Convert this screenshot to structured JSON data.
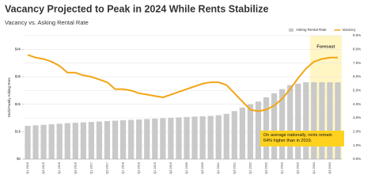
{
  "chart_data": {
    "type": "bar-line",
    "title": "Vacancy Projected to Peak in 2024 While Rents Stabilize",
    "subtitle": "Vacancy vs. Asking Rental Rate",
    "y_label": "Multi-Family Asking Rent",
    "categories": [
      "Q1 2015",
      null,
      "Q3 2015",
      null,
      "Q1 2016",
      null,
      "Q3 2016",
      null,
      "Q1 2017",
      null,
      "Q3 2017",
      null,
      "Q1 2018",
      null,
      "Q3 2018",
      null,
      "Q1 2019",
      null,
      "Q3 2019",
      null,
      "Q1 2020",
      null,
      "Q3 2020",
      null,
      "Q1 2021",
      null,
      "Q3 2021",
      null,
      "Q1 2022",
      null,
      "Q3 2022",
      null,
      "Q1 2023",
      null,
      "Q3 2023",
      null,
      "Q1 2024",
      null,
      "Q3 2024",
      null
    ],
    "series": [
      {
        "name": "Asking Rental Rate",
        "color": "#c9c9c9",
        "type": "bar",
        "values": [
          1212,
          1230,
          1250,
          1270,
          1290,
          1310,
          1325,
          1340,
          1355,
          1370,
          1385,
          1400,
          1415,
          1430,
          1445,
          1460,
          1475,
          1490,
          1505,
          1520,
          1535,
          1550,
          1560,
          1575,
          1600,
          1650,
          1750,
          1880,
          2000,
          2100,
          2250,
          2400,
          2550,
          2700,
          2750,
          2800,
          2800,
          2800,
          2800,
          2800
        ]
      },
      {
        "name": "Vacancy",
        "color": "#f2a516",
        "type": "line",
        "axis": "y2",
        "values": [
          7.6,
          7.4,
          7.3,
          7.1,
          6.8,
          6.3,
          6.3,
          6.1,
          6.0,
          5.8,
          5.6,
          5.1,
          5.1,
          5.0,
          4.8,
          4.7,
          4.6,
          4.5,
          4.7,
          4.9,
          5.1,
          5.3,
          5.5,
          5.6,
          5.6,
          5.4,
          4.8,
          4.2,
          3.6,
          3.5,
          3.6,
          3.9,
          4.4,
          5.1,
          5.9,
          6.6,
          7.1,
          7.3,
          7.4,
          7.4
        ]
      }
    ],
    "ylim": [
      0,
      4500
    ],
    "yticks": [
      {
        "value": 0,
        "label": "$0"
      },
      {
        "value": 1000,
        "label": "$1k"
      },
      {
        "value": 2000,
        "label": "$2k"
      },
      {
        "value": 3000,
        "label": "$3k"
      },
      {
        "value": 4000,
        "label": "$4k"
      }
    ],
    "y2lim": [
      0,
      9
    ],
    "y2ticks": [
      {
        "value": 0,
        "label": "0.0%"
      },
      {
        "value": 1,
        "label": "1.0%"
      },
      {
        "value": 2,
        "label": "2.0%"
      },
      {
        "value": 3,
        "label": "3.0%"
      },
      {
        "value": 4,
        "label": "4.0%"
      },
      {
        "value": 5,
        "label": "5.0%"
      },
      {
        "value": 6,
        "label": "6.0%"
      },
      {
        "value": 7,
        "label": "7.0%"
      },
      {
        "value": 8,
        "label": "8.0%"
      },
      {
        "value": 9,
        "label": "9.0%"
      }
    ],
    "grid": true,
    "legend": "top-right",
    "forecast": {
      "label": "Forecast",
      "from": "Q1 2024",
      "color": "#fff6c4"
    },
    "annotation": {
      "text": "On average nationally, rents remain 64% higher than in 2019.",
      "color": "#ffd21f"
    }
  }
}
